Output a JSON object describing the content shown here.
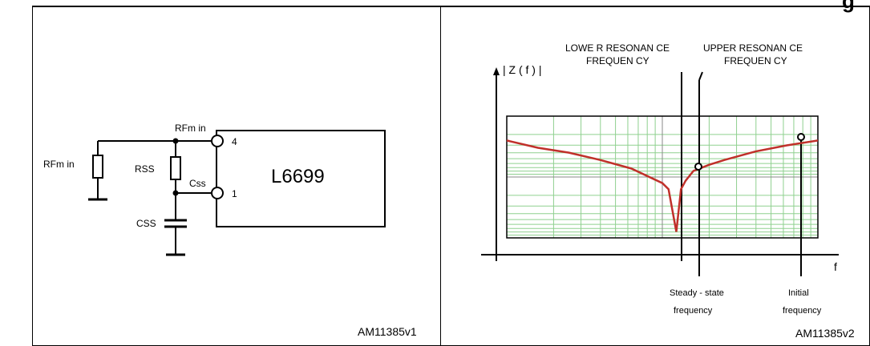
{
  "header": {
    "partial_title_fragment": "g"
  },
  "left_panel": {
    "id_code": "AM11385v1",
    "ic_name": "L6699",
    "labels": {
      "rfmin_left": "RFm in",
      "rfmin_top": "RFm in",
      "rss": "RSS",
      "css_pin": "Css",
      "css_cap": "CSS",
      "pin4": "4",
      "pin1": "1"
    }
  },
  "right_panel": {
    "id_code": "AM11385v2",
    "y_axis_label": "| Z ( f ) |",
    "x_axis_label": "f",
    "lower_resonance": [
      "LOWE R RESONAN CE",
      "FREQUEN CY"
    ],
    "upper_resonance": [
      "UPPER RESONAN CE",
      "FREQUEN CY"
    ],
    "steady_state": [
      "Steady - state",
      "frequency"
    ],
    "initial": [
      "Initial",
      "frequency"
    ],
    "colors": {
      "grid": "#8fd08f",
      "curve": "#c0302a",
      "plot_frame": "#000000"
    }
  },
  "chart_data": {
    "type": "line",
    "title": "",
    "xlabel": "f",
    "ylabel": "| Z ( f ) |",
    "x_scale": "log",
    "y_scale": "log",
    "grid": true,
    "annotations": [
      "LOWER RESONANCE FREQUENCY",
      "UPPER RESONANCE FREQUENCY",
      "Steady-state frequency",
      "Initial frequency"
    ],
    "series": [
      {
        "values_note": "qualitative impedance magnitude vs frequency; minimum (notch) at lower resonance frequency",
        "x": [
          0.0,
          0.1,
          0.2,
          0.3,
          0.4,
          0.5,
          0.52,
          0.545,
          0.56,
          0.575,
          0.6,
          0.65,
          0.7,
          0.8,
          0.9,
          1.0
        ],
        "y": [
          0.8,
          0.74,
          0.7,
          0.64,
          0.57,
          0.45,
          0.4,
          0.05,
          0.4,
          0.47,
          0.55,
          0.6,
          0.64,
          0.71,
          0.76,
          0.8
        ]
      }
    ]
  }
}
